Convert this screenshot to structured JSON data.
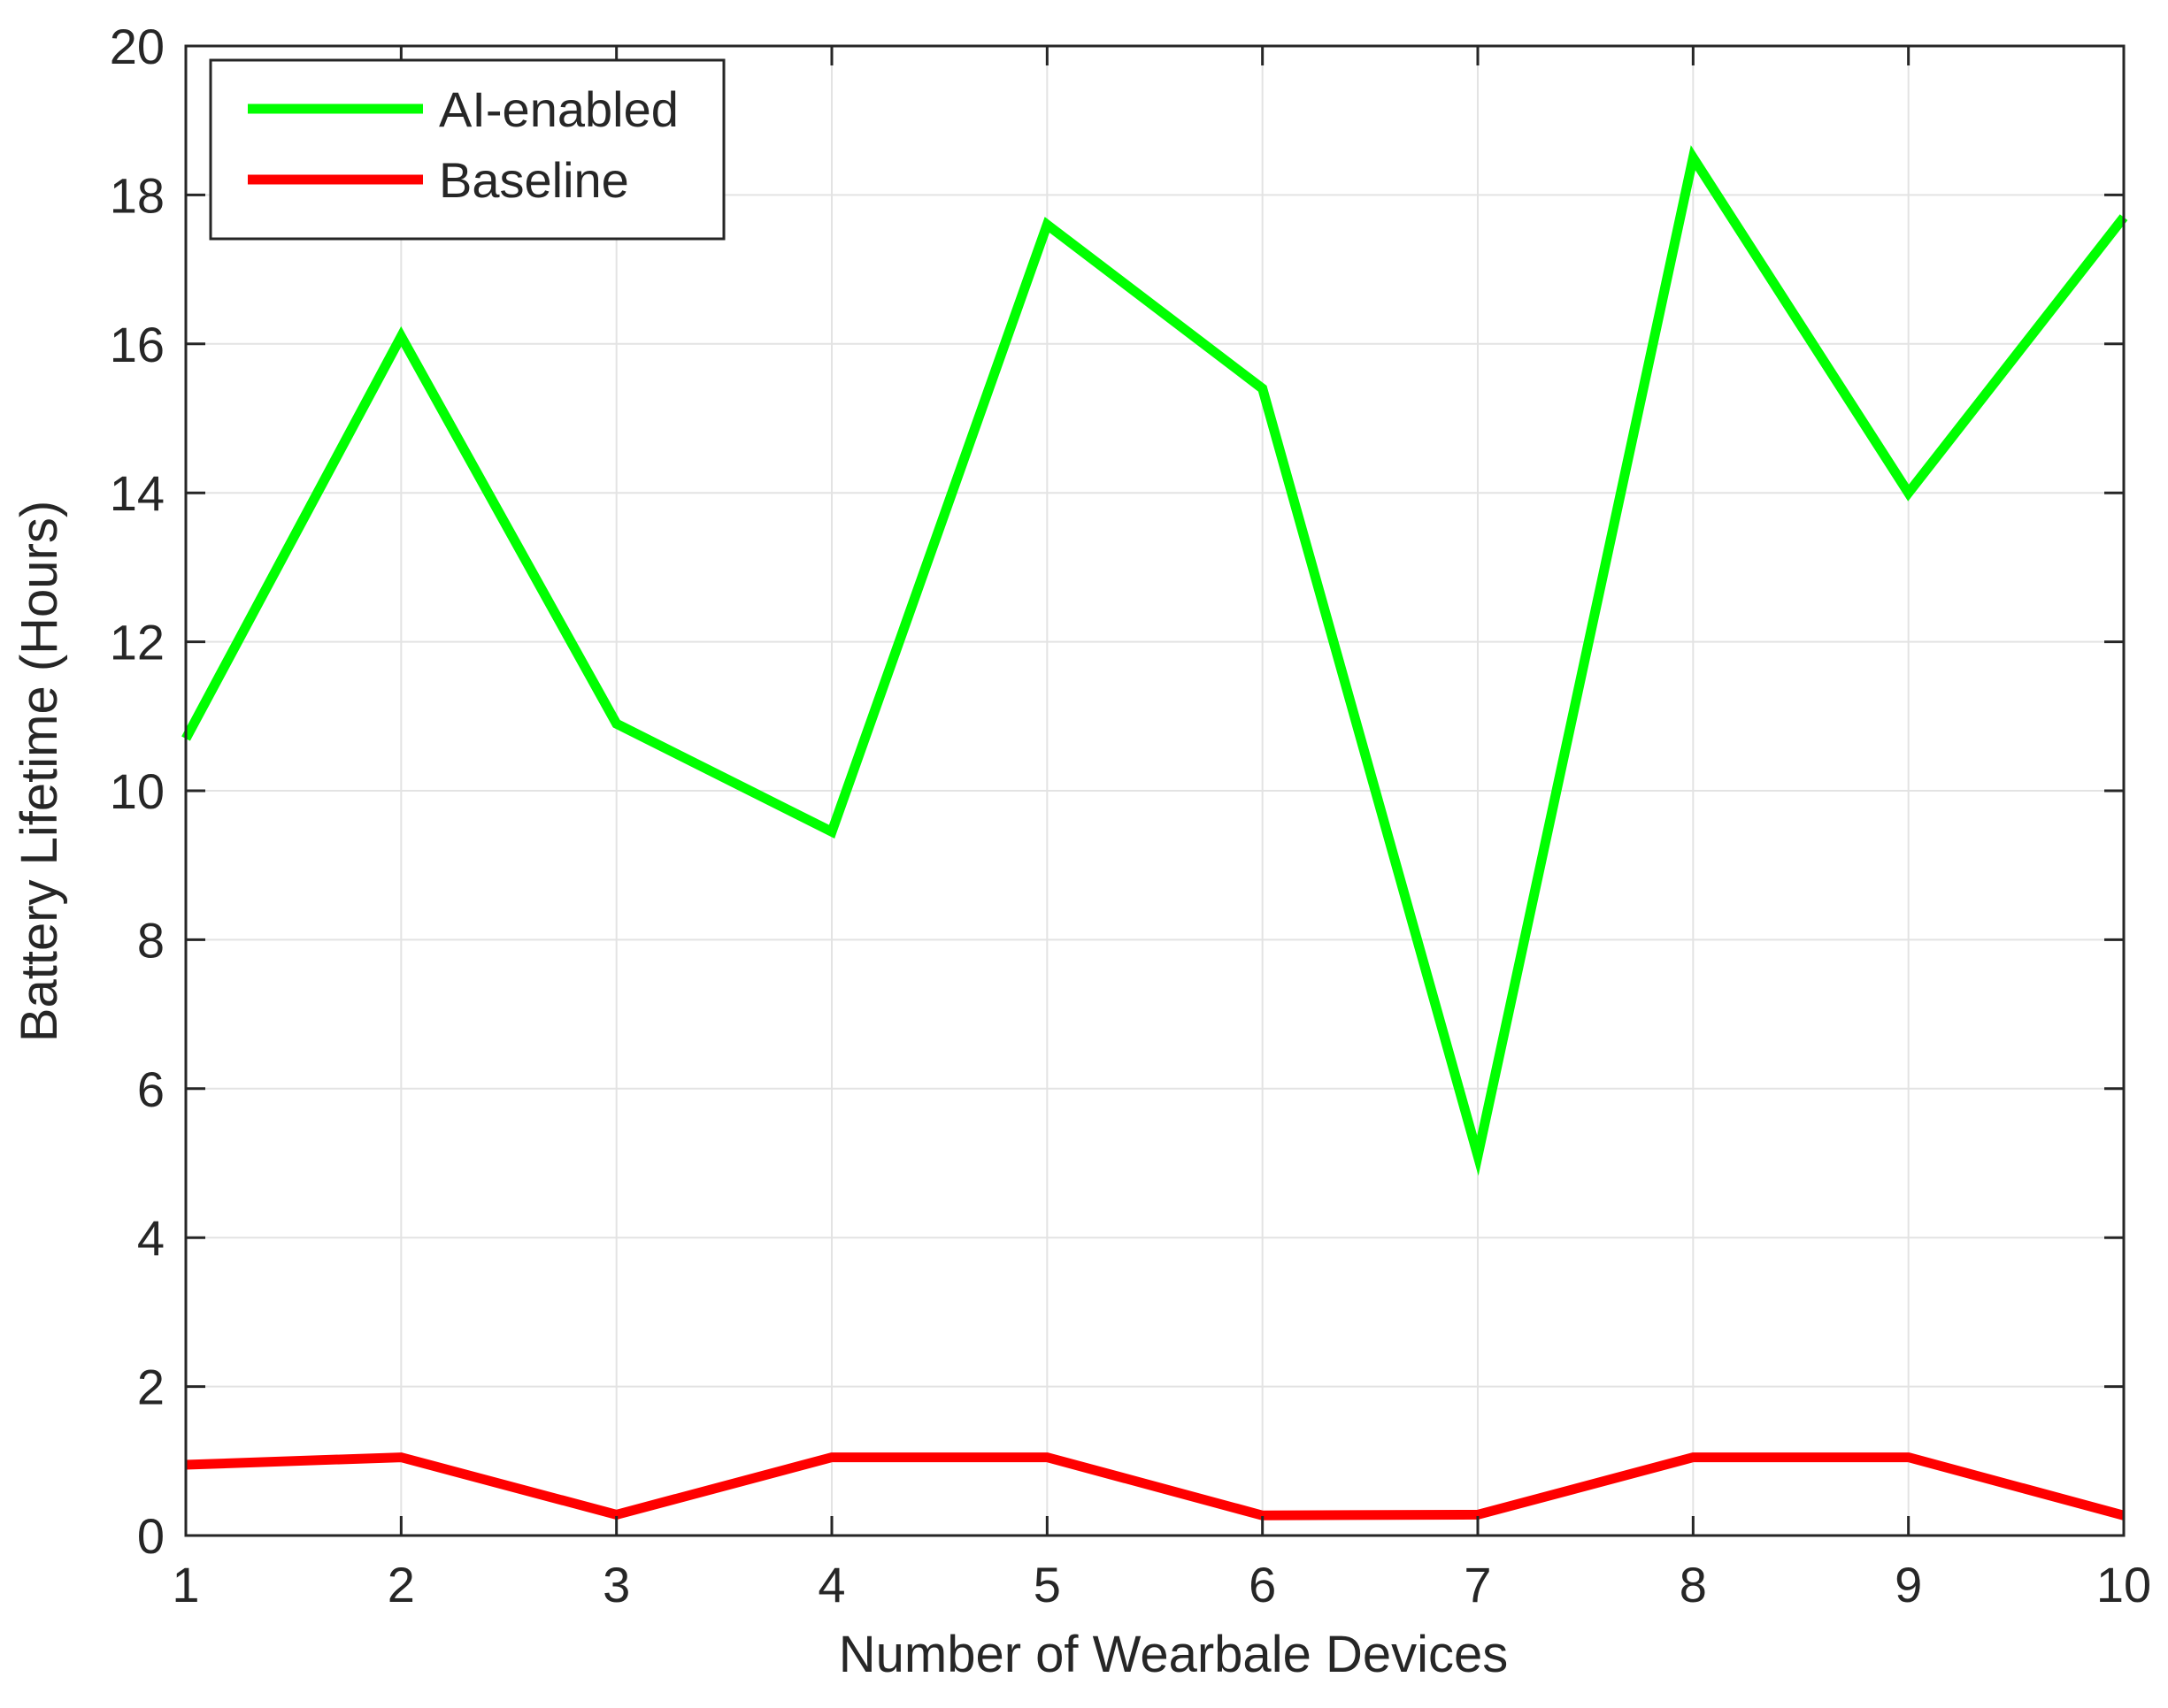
{
  "chart_data": {
    "type": "line",
    "title": "",
    "xlabel": "Number of Wearbale Devices",
    "ylabel": "Battery Lifetime (Hours)",
    "xlim": [
      1,
      10
    ],
    "ylim": [
      0,
      20
    ],
    "x_ticks": [
      1,
      2,
      3,
      4,
      5,
      6,
      7,
      8,
      9,
      10
    ],
    "y_ticks": [
      0,
      2,
      4,
      6,
      8,
      10,
      12,
      14,
      16,
      18,
      20
    ],
    "grid": true,
    "legend_position": "top-left",
    "x": [
      1,
      2,
      3,
      4,
      5,
      6,
      7,
      8,
      9,
      10
    ],
    "series": [
      {
        "name": "AI-enabled",
        "color": "#00ff00",
        "values": [
          10.7,
          16.1,
          10.9,
          9.45,
          17.6,
          15.4,
          5.1,
          18.5,
          14.0,
          17.7
        ]
      },
      {
        "name": "Baseline",
        "color": "#ff0000",
        "values": [
          0.95,
          1.05,
          0.28,
          1.05,
          1.05,
          0.27,
          0.28,
          1.05,
          1.05,
          0.27
        ]
      }
    ]
  }
}
